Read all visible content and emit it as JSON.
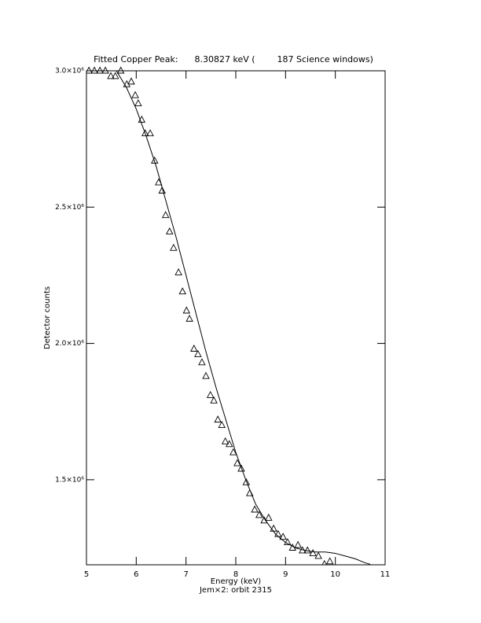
{
  "chart_data": {
    "type": "scatter",
    "title": "Fitted Copper Peak:      8.30827 keV (        187 Science windows)",
    "x_label": "Energy (keV)",
    "subtitle": "Jem×2: orbit 2315",
    "y_label": "Detector counts",
    "xlim": [
      5,
      11
    ],
    "xticks": [
      5,
      6,
      7,
      8,
      9,
      10,
      11
    ],
    "ylim": [
      1188000,
      3000000
    ],
    "yticks": [
      {
        "value": 1500000,
        "label": "1.5×10⁶"
      },
      {
        "value": 2000000,
        "label": "2.0×10⁶"
      },
      {
        "value": 2500000,
        "label": "2.5×10⁶"
      },
      {
        "value": 3000000,
        "label": "3.0×10⁶"
      }
    ],
    "series": [
      {
        "mode": "markers",
        "color": "#000000",
        "x": [
          5.05,
          5.16,
          5.27,
          5.38,
          5.49,
          5.58,
          5.69,
          5.81,
          5.9,
          5.98,
          6.04,
          6.11,
          6.18,
          6.28,
          6.37,
          6.45,
          6.52,
          6.59,
          6.67,
          6.75,
          6.85,
          6.93,
          7.01,
          7.07,
          7.16,
          7.24,
          7.32,
          7.4,
          7.49,
          7.56,
          7.64,
          7.72,
          7.79,
          7.87,
          7.95,
          8.03,
          8.11,
          8.21,
          8.28,
          8.38,
          8.47,
          8.57,
          8.66,
          8.76,
          8.85,
          8.95,
          9.04,
          9.14,
          9.25,
          9.34,
          9.44,
          9.55,
          9.66,
          9.78,
          9.89
        ],
        "values": [
          3000000,
          3000000,
          3000000,
          3000000,
          2980000,
          2980000,
          3000000,
          2950000,
          2960000,
          2910000,
          2880000,
          2820000,
          2770000,
          2770000,
          2670000,
          2590000,
          2560000,
          2470000,
          2410000,
          2350000,
          2260000,
          2190000,
          2120000,
          2090000,
          1980000,
          1960000,
          1930000,
          1880000,
          1810000,
          1790000,
          1720000,
          1700000,
          1640000,
          1630000,
          1600000,
          1560000,
          1540000,
          1490000,
          1450000,
          1390000,
          1370000,
          1350000,
          1360000,
          1320000,
          1300000,
          1290000,
          1270000,
          1250000,
          1260000,
          1240000,
          1240000,
          1230000,
          1220000,
          1190000,
          1200000
        ]
      },
      {
        "mode": "line",
        "color": "#000000",
        "x": [
          5.6,
          5.8,
          6.0,
          6.2,
          6.4,
          6.6,
          6.8,
          7.0,
          7.2,
          7.4,
          7.6,
          7.8,
          8.0,
          8.2,
          8.4,
          8.6,
          8.8,
          9.0,
          9.2,
          9.4,
          9.6,
          9.8,
          10.0,
          10.2,
          10.4,
          10.6,
          10.7
        ],
        "values": [
          3000000,
          2940000,
          2860000,
          2760000,
          2650000,
          2520000,
          2390000,
          2250000,
          2110000,
          1970000,
          1840000,
          1720000,
          1600000,
          1500000,
          1410000,
          1350000,
          1300000,
          1270000,
          1250000,
          1240000,
          1235000,
          1235000,
          1230000,
          1220000,
          1210000,
          1195000,
          1190000
        ]
      }
    ]
  }
}
